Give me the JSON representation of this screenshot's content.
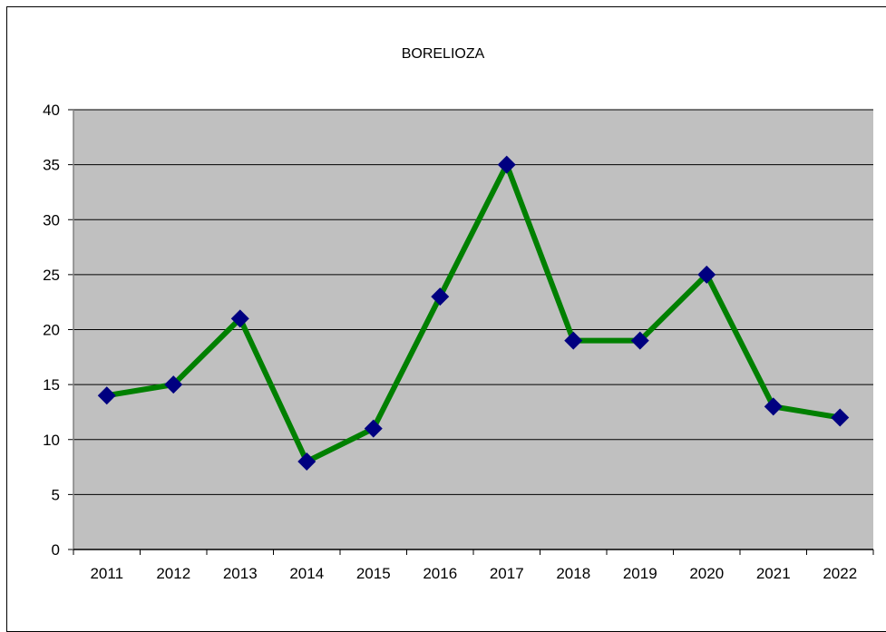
{
  "chart_data": {
    "type": "line",
    "title": "BORELIOZA",
    "xlabel": "",
    "ylabel": "",
    "categories": [
      "2011",
      "2012",
      "2013",
      "2014",
      "2015",
      "2016",
      "2017",
      "2018",
      "2019",
      "2020",
      "2021",
      "2022"
    ],
    "series": [
      {
        "values": [
          14,
          15,
          21,
          8,
          11,
          23,
          35,
          19,
          19,
          25,
          13,
          12
        ]
      }
    ],
    "ylim": [
      0,
      40
    ],
    "y_ticks": [
      "0",
      "5",
      "10",
      "15",
      "20",
      "25",
      "30",
      "35",
      "40"
    ],
    "grid": true,
    "legend": "none",
    "colors": {
      "plot_background": "#c0c0c0",
      "line": "#008000",
      "marker": "#000080",
      "gridline": "#000000"
    }
  }
}
